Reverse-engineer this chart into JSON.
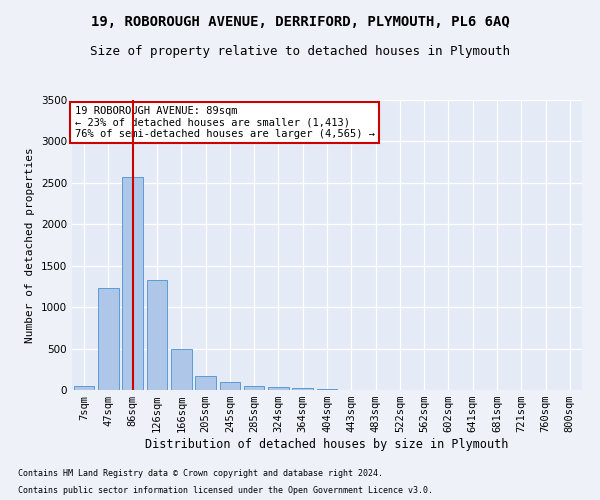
{
  "title": "19, ROBOROUGH AVENUE, DERRIFORD, PLYMOUTH, PL6 6AQ",
  "subtitle": "Size of property relative to detached houses in Plymouth",
  "xlabel": "Distribution of detached houses by size in Plymouth",
  "ylabel": "Number of detached properties",
  "categories": [
    "7sqm",
    "47sqm",
    "86sqm",
    "126sqm",
    "166sqm",
    "205sqm",
    "245sqm",
    "285sqm",
    "324sqm",
    "364sqm",
    "404sqm",
    "443sqm",
    "483sqm",
    "522sqm",
    "562sqm",
    "602sqm",
    "641sqm",
    "681sqm",
    "721sqm",
    "760sqm",
    "800sqm"
  ],
  "values": [
    50,
    1230,
    2570,
    1330,
    490,
    175,
    100,
    50,
    35,
    20,
    10,
    5,
    3,
    2,
    1,
    1,
    0,
    0,
    0,
    0,
    0
  ],
  "bar_color": "#aec6e8",
  "bar_edge_color": "#5b9bd5",
  "vline_x": 2,
  "vline_color": "#cc0000",
  "annotation_line1": "19 ROBOROUGH AVENUE: 89sqm",
  "annotation_line2": "← 23% of detached houses are smaller (1,413)",
  "annotation_line3": "76% of semi-detached houses are larger (4,565) →",
  "annotation_box_color": "#ffffff",
  "annotation_box_edge_color": "#cc0000",
  "footnote1": "Contains HM Land Registry data © Crown copyright and database right 2024.",
  "footnote2": "Contains public sector information licensed under the Open Government Licence v3.0.",
  "ylim": [
    0,
    3500
  ],
  "yticks": [
    0,
    500,
    1000,
    1500,
    2000,
    2500,
    3000,
    3500
  ],
  "background_color": "#eef2f8",
  "plot_background_color": "#e4eaf6",
  "grid_color": "#ffffff",
  "title_fontsize": 10,
  "subtitle_fontsize": 9,
  "xlabel_fontsize": 8.5,
  "ylabel_fontsize": 8,
  "tick_fontsize": 7.5,
  "annot_fontsize": 7.5,
  "footnote_fontsize": 6
}
